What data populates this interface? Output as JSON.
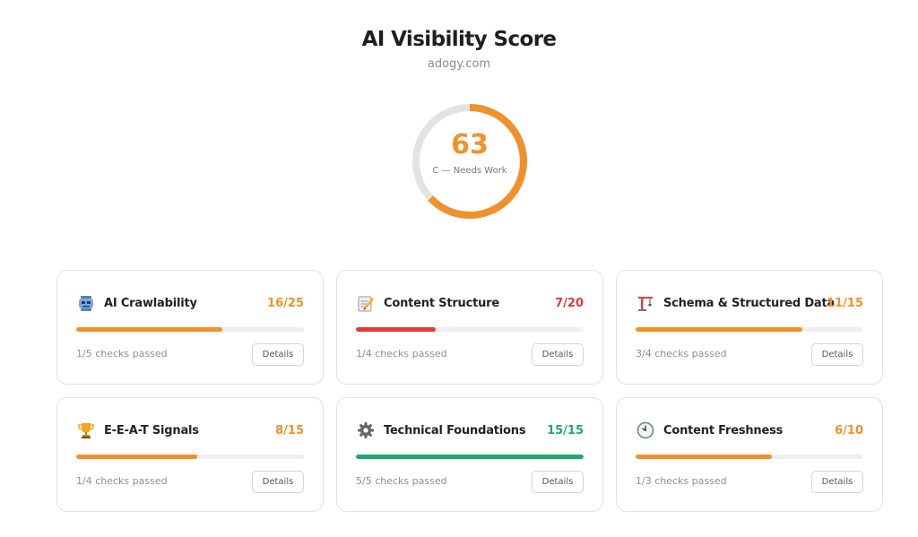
{
  "header": {
    "title": "AI Visibility Score",
    "domain": "adogy.com"
  },
  "overall": {
    "score": "63",
    "max": 100,
    "grade": "C — Needs Work",
    "color": "#f0912b",
    "track_color": "#e3e3e3"
  },
  "cards": [
    {
      "name": "AI Crawlability",
      "score": "16/25",
      "earned": 16,
      "total": 25,
      "color": "#f0912b",
      "checks": "1/5 checks passed",
      "details": "Details",
      "icon": "robot-icon"
    },
    {
      "name": "Content Structure",
      "score": "7/20",
      "earned": 7,
      "total": 20,
      "color": "#e5383b",
      "checks": "1/4 checks passed",
      "details": "Details",
      "icon": "memo-icon"
    },
    {
      "name": "Schema & Structured Data",
      "score": "11/15",
      "earned": 11,
      "total": 15,
      "color": "#f0912b",
      "checks": "3/4 checks passed",
      "details": "Details",
      "icon": "construction-crane-icon"
    },
    {
      "name": "E-E-A-T Signals",
      "score": "8/15",
      "earned": 8,
      "total": 15,
      "color": "#f0912b",
      "checks": "1/4 checks passed",
      "details": "Details",
      "icon": "trophy-icon"
    },
    {
      "name": "Technical Foundations",
      "score": "15/15",
      "earned": 15,
      "total": 15,
      "color": "#22a86b",
      "checks": "5/5 checks passed",
      "details": "Details",
      "icon": "gear-icon"
    },
    {
      "name": "Content Freshness",
      "score": "6/10",
      "earned": 6,
      "total": 10,
      "color": "#f0912b",
      "checks": "1/3 checks passed",
      "details": "Details",
      "icon": "stopwatch-icon"
    }
  ]
}
